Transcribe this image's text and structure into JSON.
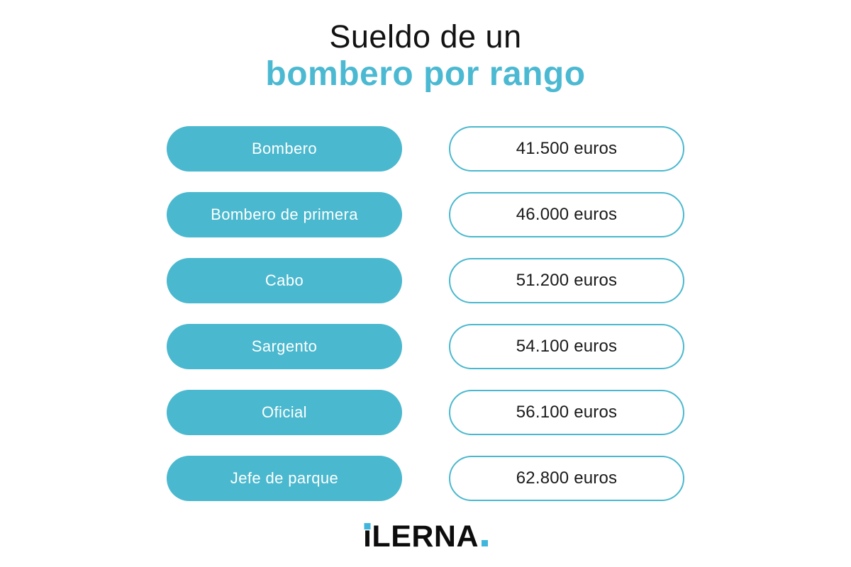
{
  "title": {
    "line1": "Sueldo de un",
    "line2": "bombero por rango",
    "accent_color": "#4bb9d2"
  },
  "rows": [
    {
      "rank": "Bombero",
      "salary": "41.500 euros"
    },
    {
      "rank": "Bombero de primera",
      "salary": "46.000 euros"
    },
    {
      "rank": "Cabo",
      "salary": "51.200 euros"
    },
    {
      "rank": "Sargento",
      "salary": "54.100 euros"
    },
    {
      "rank": "Oficial",
      "salary": "56.100 euros"
    },
    {
      "rank": "Jefe de parque",
      "salary": "62.800 euros"
    }
  ],
  "colors": {
    "pill_teal": "#4ab8ce",
    "logo_cyan": "#41b6dc",
    "background": "#ffffff",
    "text_black": "#1a1a1a"
  },
  "logo": {
    "brand": "iLERNA.",
    "i_stem": "ı",
    "rest": "LERNA"
  },
  "chart_data": {
    "type": "table",
    "title": "Sueldo de un bombero por rango",
    "categories": [
      "Bombero",
      "Bombero de primera",
      "Cabo",
      "Sargento",
      "Oficial",
      "Jefe de parque"
    ],
    "values": [
      41500,
      46000,
      51200,
      54100,
      56100,
      62800
    ],
    "value_labels": [
      "41.500 euros",
      "46.000 euros",
      "51.200 euros",
      "54.100 euros",
      "56.100 euros",
      "62.800 euros"
    ],
    "unit": "euros",
    "legend_position": "none",
    "grid": false
  }
}
